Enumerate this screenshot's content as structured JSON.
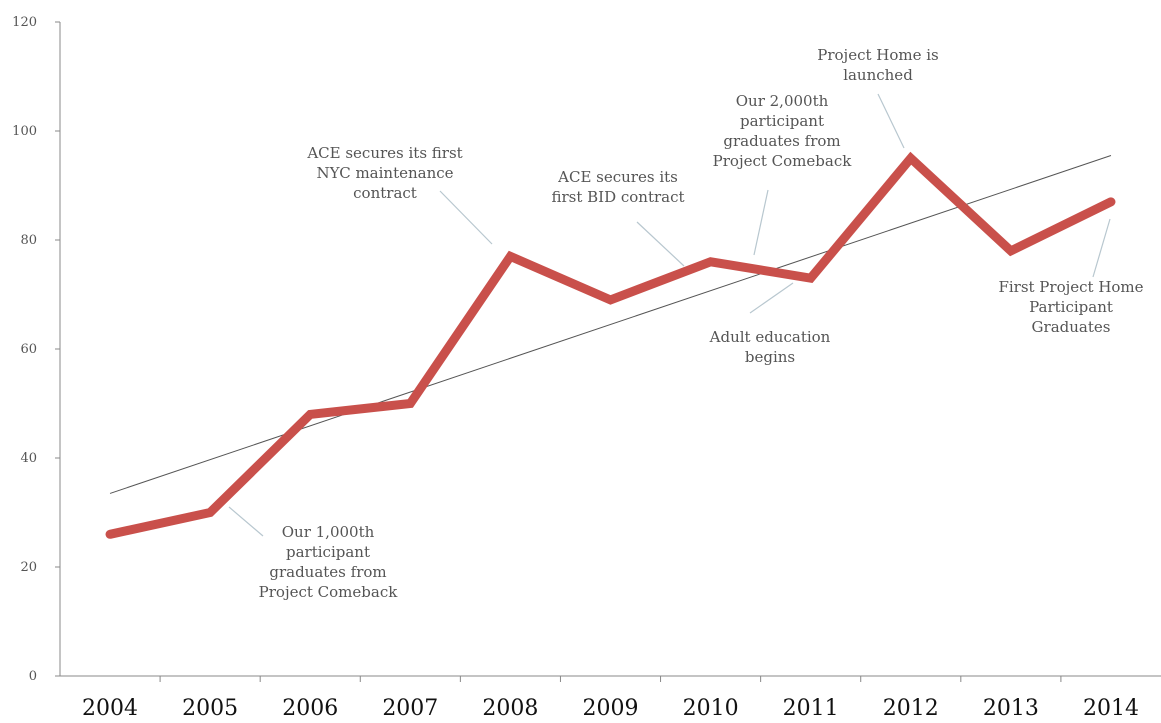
{
  "chart_data": {
    "type": "line",
    "title": "",
    "xlabel": "",
    "ylabel": "",
    "categories": [
      "2004",
      "2005",
      "2006",
      "2007",
      "2008",
      "2009",
      "2010",
      "2011",
      "2012",
      "2013",
      "2014"
    ],
    "series": [
      {
        "values": [
          26,
          30,
          48,
          50,
          77,
          69,
          76,
          73,
          95,
          78,
          87
        ],
        "color": "#c9504b"
      }
    ],
    "trendline": {
      "start": 33.5,
      "end": 95.5,
      "color": "#555555"
    },
    "ylim": [
      0,
      120
    ],
    "yticks": [
      "0",
      "20",
      "40",
      "60",
      "80",
      "100",
      "120"
    ],
    "grid": false,
    "legend": "none",
    "annotations": [
      {
        "category": "2005",
        "value": 30,
        "lines": [
          "Our 1,000th",
          "participant",
          "graduates from",
          "Project Comeback"
        ]
      },
      {
        "category": "2008",
        "value": 77,
        "lines": [
          "ACE secures its first",
          "NYC maintenance",
          "contract"
        ]
      },
      {
        "category": "2010",
        "value": 76,
        "lines": [
          "ACE secures its",
          "first BID contract"
        ]
      },
      {
        "category": "2011",
        "value": 73,
        "lines": [
          "Our 2,000th",
          "participant",
          "graduates from",
          "Project Comeback"
        ]
      },
      {
        "category": "2011",
        "value": 73,
        "lines": [
          "Adult education",
          "begins"
        ]
      },
      {
        "category": "2012",
        "value": 95,
        "lines": [
          "Project Home is",
          "launched"
        ]
      },
      {
        "category": "2014",
        "value": 87,
        "lines": [
          "First Project Home",
          "Participant",
          "Graduates"
        ]
      }
    ]
  }
}
